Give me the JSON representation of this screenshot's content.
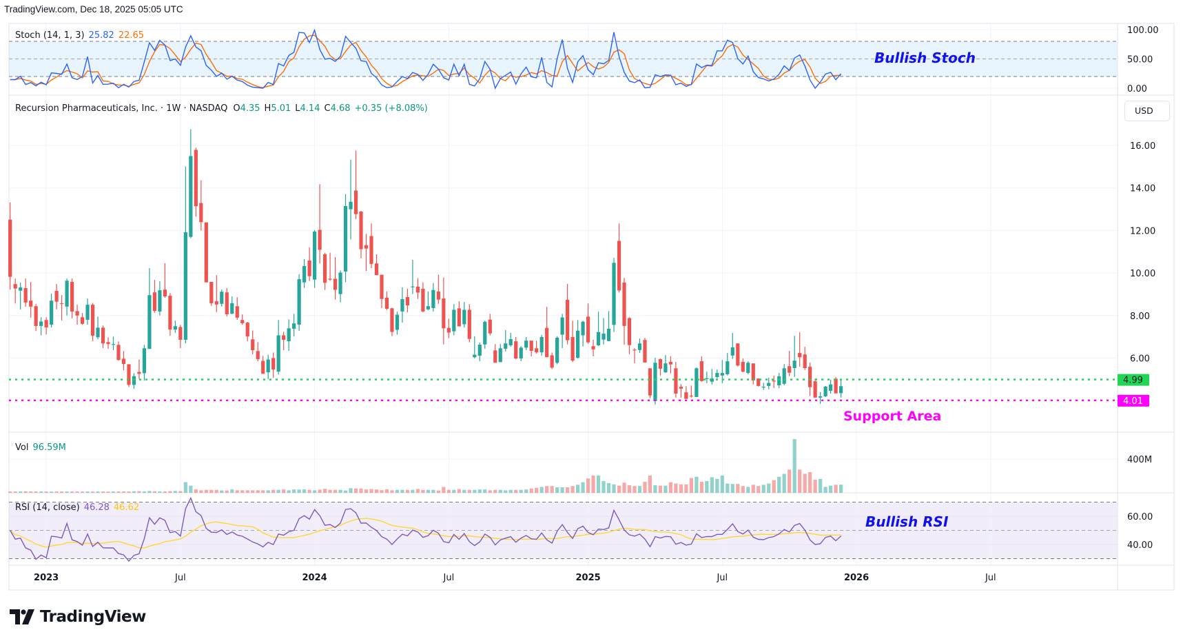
{
  "header": {
    "text": "TradingView.com, Dec 18, 2025 05:05 UTC"
  },
  "brand": {
    "name": "TradingView"
  },
  "currency_button": "USD",
  "colors": {
    "up": "#26a69a",
    "down": "#ef5350",
    "stoch_k": "#2962ff",
    "stoch_d": "#ff6d00",
    "rsi": "#7e57c2",
    "rsi_ma": "#fdd835",
    "support_green": "#1fd655",
    "support_magenta": "#ff00ff",
    "annotation_blue": "#1010f0"
  },
  "legends": {
    "stoch": {
      "name": "Stoch (14, 1, 3)",
      "k": "25.82",
      "d": "22.65"
    },
    "main": {
      "name": "Recursion Pharmaceuticals, Inc. · 1W · NASDAQ",
      "o_label": "O",
      "o": "4.35",
      "h_label": "H",
      "h": "5.01",
      "l_label": "L",
      "l": "4.14",
      "c_label": "C",
      "c": "4.68",
      "change": "+0.35 (+8.08%)"
    },
    "vol": {
      "name": "Vol",
      "value": "96.59M"
    },
    "rsi": {
      "name": "RSI (14, close)",
      "value": "46.28",
      "ma": "46.62"
    }
  },
  "annotations": {
    "stoch": "Bullish Stoch",
    "support": "Support Area",
    "rsi": "Bullish RSI"
  },
  "chart_data": {
    "type": "candlestick",
    "interval": "1W",
    "symbol": "Recursion Pharmaceuticals, Inc. (NASDAQ)",
    "price_axis": {
      "ticks": [
        "16.00",
        "14.00",
        "12.00",
        "10.00",
        "8.00",
        "6.00"
      ],
      "ylim": [
        3.4,
        18.9
      ]
    },
    "stoch_axis": {
      "ticks": [
        "100.00",
        "50.00",
        "0.00"
      ],
      "levels": [
        80,
        50,
        20
      ]
    },
    "vol_axis": {
      "ticks": [
        "400M"
      ],
      "tick_values": [
        400
      ]
    },
    "rsi_axis": {
      "ticks": [
        "60.00",
        "40.00"
      ],
      "tick_values": [
        60,
        40
      ],
      "levels": [
        70,
        50,
        30
      ]
    },
    "time_axis": {
      "labels": [
        {
          "text": "2023",
          "bold": true
        },
        {
          "text": "Jul",
          "bold": false
        },
        {
          "text": "2024",
          "bold": true
        },
        {
          "text": "Jul",
          "bold": false
        },
        {
          "text": "2025",
          "bold": true
        },
        {
          "text": "Jul",
          "bold": false
        },
        {
          "text": "2026",
          "bold": true
        },
        {
          "text": "Jul",
          "bold": false
        }
      ],
      "label_week_index": [
        7,
        33,
        59,
        85,
        112,
        138,
        164,
        190
      ]
    },
    "horizontal_lines": [
      {
        "value": 4.99,
        "label": "4.99",
        "color": "#1fd655"
      },
      {
        "value": 4.01,
        "label": "4.01",
        "color": "#ff00ff"
      }
    ],
    "ohlc_columns": [
      "open",
      "high",
      "low",
      "close"
    ],
    "ohlc": [
      [
        12.51,
        13.32,
        9.22,
        9.82
      ],
      [
        9.48,
        9.74,
        8.57,
        9.27
      ],
      [
        9.17,
        9.55,
        8.29,
        9.32
      ],
      [
        9.29,
        9.74,
        8.41,
        8.61
      ],
      [
        8.7,
        9.58,
        7.9,
        8.42
      ],
      [
        8.44,
        8.54,
        7.27,
        7.51
      ],
      [
        7.51,
        7.92,
        7.07,
        7.72
      ],
      [
        7.79,
        7.92,
        7.11,
        7.44
      ],
      [
        7.57,
        9.03,
        7.44,
        8.7
      ],
      [
        9.16,
        9.48,
        8.29,
        8.65
      ],
      [
        8.58,
        8.96,
        7.77,
        8.56
      ],
      [
        8.42,
        9.74,
        8.0,
        9.64
      ],
      [
        9.58,
        9.74,
        7.87,
        8.19
      ],
      [
        8.21,
        8.51,
        7.57,
        8.0
      ],
      [
        7.92,
        8.12,
        7.57,
        7.61
      ],
      [
        7.8,
        8.8,
        7.57,
        8.51
      ],
      [
        8.51,
        8.59,
        6.79,
        7.05
      ],
      [
        6.98,
        7.95,
        6.89,
        7.43
      ],
      [
        7.43,
        7.53,
        6.47,
        6.69
      ],
      [
        6.75,
        6.98,
        6.43,
        6.66
      ],
      [
        6.64,
        7.01,
        6.37,
        6.66
      ],
      [
        6.62,
        6.78,
        5.88,
        5.91
      ],
      [
        5.97,
        6.33,
        5.43,
        5.72
      ],
      [
        5.71,
        5.71,
        4.64,
        4.74
      ],
      [
        4.74,
        5.29,
        4.55,
        5.15
      ],
      [
        5.35,
        5.93,
        5.01,
        5.26
      ],
      [
        5.29,
        6.62,
        4.94,
        6.46
      ],
      [
        6.43,
        10.23,
        6.43,
        8.96
      ],
      [
        9.09,
        9.68,
        8.13,
        8.22
      ],
      [
        8.19,
        9.61,
        8.0,
        9.19
      ],
      [
        9.22,
        10.46,
        8.84,
        8.9
      ],
      [
        8.93,
        9.06,
        7.05,
        7.34
      ],
      [
        7.34,
        7.76,
        7.18,
        7.5
      ],
      [
        7.46,
        7.56,
        6.47,
        6.86
      ],
      [
        6.86,
        15.01,
        6.69,
        11.92
      ],
      [
        11.7,
        16.77,
        11.64,
        15.5
      ],
      [
        15.79,
        15.89,
        12.65,
        13.14
      ],
      [
        13.29,
        14.36,
        12.0,
        12.39
      ],
      [
        12.38,
        12.38,
        9.56,
        9.56
      ],
      [
        9.58,
        9.58,
        8.45,
        8.58
      ],
      [
        8.67,
        9.9,
        8.16,
        8.52
      ],
      [
        8.55,
        9.22,
        8.42,
        9.12
      ],
      [
        9.09,
        9.29,
        7.96,
        8.06
      ],
      [
        8.09,
        8.9,
        8.06,
        8.58
      ],
      [
        8.44,
        8.86,
        7.8,
        7.9
      ],
      [
        7.79,
        8.05,
        7.57,
        7.64
      ],
      [
        7.67,
        7.7,
        6.79,
        7.02
      ],
      [
        6.88,
        7.3,
        6.17,
        6.37
      ],
      [
        6.33,
        6.75,
        5.85,
        5.95
      ],
      [
        5.87,
        6.1,
        5.26,
        5.26
      ],
      [
        5.33,
        6.16,
        5.0,
        5.93
      ],
      [
        6.0,
        6.26,
        5.07,
        5.46
      ],
      [
        5.36,
        7.79,
        5.23,
        7.07
      ],
      [
        7.07,
        7.24,
        6.37,
        6.86
      ],
      [
        6.79,
        7.82,
        6.34,
        7.4
      ],
      [
        7.38,
        8.08,
        7.02,
        7.63
      ],
      [
        7.57,
        9.94,
        7.28,
        9.71
      ],
      [
        9.56,
        10.65,
        9.3,
        10.33
      ],
      [
        10.59,
        11.21,
        9.62,
        9.85
      ],
      [
        9.69,
        12.02,
        9.3,
        11.95
      ],
      [
        12.03,
        14.18,
        10.45,
        11.09
      ],
      [
        10.88,
        10.95,
        9.2,
        9.54
      ],
      [
        9.73,
        10.95,
        9.64,
        9.69
      ],
      [
        9.73,
        10.75,
        8.75,
        9.21
      ],
      [
        9.01,
        10.12,
        8.62,
        10.02
      ],
      [
        10.07,
        13.71,
        9.57,
        13.15
      ],
      [
        13.0,
        15.33,
        11.58,
        13.35
      ],
      [
        13.88,
        15.76,
        12.54,
        12.77
      ],
      [
        12.89,
        12.92,
        10.69,
        11.12
      ],
      [
        11.31,
        11.84,
        10.1,
        11.15
      ],
      [
        11.74,
        12.33,
        10.23,
        10.43
      ],
      [
        10.45,
        10.88,
        9.9,
        9.9
      ],
      [
        9.92,
        9.92,
        8.35,
        8.78
      ],
      [
        8.84,
        9.13,
        8.25,
        8.32
      ],
      [
        8.34,
        8.37,
        7.03,
        7.23
      ],
      [
        7.33,
        8.18,
        7.1,
        8.04
      ],
      [
        8.19,
        9.33,
        7.66,
        8.77
      ],
      [
        8.87,
        9.26,
        8.15,
        8.48
      ],
      [
        9.35,
        10.62,
        9.01,
        9.37
      ],
      [
        9.36,
        9.76,
        8.78,
        9.08
      ],
      [
        9.26,
        9.56,
        8.15,
        8.19
      ],
      [
        8.29,
        9.13,
        8.25,
        8.44
      ],
      [
        8.35,
        9.53,
        8.19,
        9.2
      ],
      [
        9.13,
        9.92,
        8.55,
        8.75
      ],
      [
        8.8,
        9.79,
        6.64,
        7.4
      ],
      [
        7.42,
        7.85,
        6.93,
        7.2
      ],
      [
        7.26,
        8.54,
        7.07,
        8.27
      ],
      [
        8.34,
        8.67,
        7.49,
        7.49
      ],
      [
        7.59,
        8.64,
        7.43,
        8.27
      ],
      [
        8.27,
        8.54,
        6.74,
        6.9
      ],
      [
        6.04,
        7.02,
        5.98,
        6.16
      ],
      [
        6.11,
        6.73,
        5.85,
        6.63
      ],
      [
        6.64,
        7.76,
        6.44,
        7.71
      ],
      [
        7.81,
        8.08,
        7.07,
        7.16
      ],
      [
        6.36,
        6.66,
        5.78,
        5.78
      ],
      [
        5.81,
        6.66,
        5.81,
        6.46
      ],
      [
        6.44,
        7.32,
        6.31,
        6.69
      ],
      [
        6.6,
        7.19,
        6.54,
        6.89
      ],
      [
        6.79,
        6.99,
        5.95,
        5.98
      ],
      [
        5.98,
        6.56,
        5.85,
        6.49
      ],
      [
        6.49,
        6.99,
        6.37,
        6.82
      ],
      [
        6.82,
        6.82,
        6.08,
        6.34
      ],
      [
        6.46,
        6.82,
        6.21,
        6.27
      ],
      [
        6.27,
        7.09,
        6.11,
        6.99
      ],
      [
        7.42,
        8.41,
        6.04,
        6.04
      ],
      [
        6.13,
        6.26,
        5.48,
        5.55
      ],
      [
        5.78,
        7.02,
        5.71,
        6.96
      ],
      [
        7.1,
        8.08,
        6.47,
        7.91
      ],
      [
        8.74,
        9.49,
        6.64,
        6.84
      ],
      [
        6.99,
        7.75,
        5.81,
        5.88
      ],
      [
        6.01,
        7.78,
        5.98,
        7.29
      ],
      [
        7.07,
        7.75,
        6.54,
        7.71
      ],
      [
        7.95,
        8.57,
        6.67,
        6.74
      ],
      [
        6.56,
        6.86,
        6.08,
        6.41
      ],
      [
        6.6,
        8.18,
        6.57,
        7.22
      ],
      [
        6.87,
        7.88,
        6.64,
        7.15
      ],
      [
        6.8,
        8.21,
        6.8,
        7.38
      ],
      [
        7.56,
        10.71,
        7.23,
        10.48
      ],
      [
        11.51,
        12.33,
        9.08,
        9.18
      ],
      [
        9.55,
        9.77,
        6.63,
        7.51
      ],
      [
        7.88,
        7.92,
        6.18,
        6.61
      ],
      [
        6.4,
        6.46,
        5.75,
        6.38
      ],
      [
        6.38,
        6.92,
        6.24,
        6.69
      ],
      [
        6.85,
        6.95,
        5.79,
        5.79
      ],
      [
        5.52,
        5.52,
        4.11,
        4.24
      ],
      [
        3.98,
        6.01,
        3.82,
        5.78
      ],
      [
        5.95,
        5.98,
        5.18,
        5.5
      ],
      [
        5.33,
        6.14,
        5.3,
        5.75
      ],
      [
        5.82,
        6.08,
        5.28,
        5.7
      ],
      [
        5.52,
        5.82,
        4.14,
        4.33
      ],
      [
        4.65,
        4.78,
        4.14,
        4.56
      ],
      [
        4.39,
        4.68,
        4.08,
        4.08
      ],
      [
        4.23,
        4.71,
        4.14,
        4.21
      ],
      [
        4.17,
        5.56,
        4.17,
        5.52
      ],
      [
        5.85,
        6.08,
        4.89,
        4.92
      ],
      [
        5.04,
        5.36,
        4.82,
        5.05
      ],
      [
        4.89,
        5.49,
        4.76,
        5.04
      ],
      [
        5.11,
        5.46,
        5.05,
        5.3
      ],
      [
        5.18,
        5.91,
        4.82,
        5.3
      ],
      [
        5.24,
        6.24,
        5.18,
        5.85
      ],
      [
        6.12,
        7.18,
        5.96,
        6.5
      ],
      [
        6.69,
        6.69,
        5.6,
        5.65
      ],
      [
        5.82,
        5.98,
        5.33,
        5.36
      ],
      [
        5.3,
        5.85,
        5.24,
        5.78
      ],
      [
        5.75,
        5.75,
        4.76,
        4.95
      ],
      [
        5.04,
        5.04,
        4.66,
        4.69
      ],
      [
        4.63,
        4.84,
        4.5,
        4.65
      ],
      [
        4.69,
        5.07,
        4.53,
        4.83
      ],
      [
        4.94,
        5.17,
        4.59,
        4.92
      ],
      [
        4.72,
        5.3,
        4.59,
        5.14
      ],
      [
        4.79,
        5.72,
        4.72,
        5.52
      ],
      [
        5.62,
        6.34,
        5.15,
        5.31
      ],
      [
        5.53,
        7.05,
        5.11,
        5.88
      ],
      [
        6.24,
        7.21,
        5.6,
        6.04
      ],
      [
        6.17,
        6.53,
        5.44,
        5.53
      ],
      [
        5.59,
        5.78,
        4.21,
        4.63
      ],
      [
        4.91,
        5.04,
        4.14,
        4.14
      ],
      [
        4.14,
        4.4,
        3.85,
        4.2
      ],
      [
        4.2,
        4.69,
        4.17,
        4.66
      ],
      [
        4.46,
        4.98,
        4.33,
        4.76
      ],
      [
        5.03,
        5.11,
        4.34,
        4.34
      ],
      [
        4.35,
        5.01,
        4.14,
        4.68
      ]
    ],
    "volume_millions": [
      15,
      15,
      15,
      18,
      15,
      15,
      15,
      15,
      14,
      15,
      15,
      15,
      15,
      15,
      15,
      15,
      15,
      15,
      15,
      14,
      15,
      15,
      15,
      15,
      18,
      20,
      15,
      22,
      18,
      15,
      15,
      20,
      22,
      20,
      127,
      85,
      40,
      30,
      35,
      35,
      35,
      28,
      28,
      40,
      30,
      30,
      30,
      30,
      30,
      30,
      30,
      35,
      35,
      40,
      30,
      40,
      38,
      40,
      35,
      30,
      38,
      48,
      35,
      35,
      35,
      28,
      55,
      52,
      50,
      40,
      45,
      40,
      32,
      42,
      30,
      35,
      35,
      35,
      35,
      45,
      35,
      35,
      35,
      28,
      70,
      35,
      35,
      45,
      35,
      35,
      35,
      40,
      40,
      30,
      35,
      35,
      30,
      35,
      35,
      35,
      40,
      50,
      60,
      70,
      80,
      80,
      65,
      65,
      65,
      80,
      95,
      125,
      170,
      205,
      205,
      140,
      115,
      100,
      85,
      120,
      90,
      80,
      80,
      130,
      205,
      90,
      85,
      85,
      125,
      110,
      100,
      100,
      175,
      190,
      130,
      140,
      185,
      165,
      205,
      110,
      105,
      105,
      80,
      70,
      95,
      80,
      95,
      110,
      150,
      190,
      225,
      275,
      636,
      275,
      225,
      245,
      155,
      165,
      70,
      85,
      95,
      96.59
    ]
  }
}
